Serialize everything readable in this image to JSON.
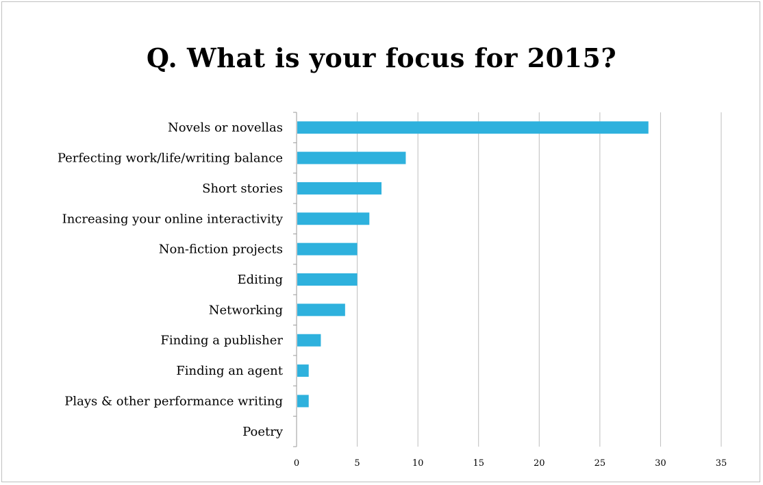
{
  "chart_data": {
    "type": "bar",
    "orientation": "horizontal",
    "title": "Q. What is your focus for 2015?",
    "categories": [
      "Novels or novellas",
      "Perfecting work/life/writing balance",
      "Short stories",
      "Increasing your online interactivity",
      "Non-fiction projects",
      "Editing",
      "Networking",
      "Finding a publisher",
      "Finding an agent",
      "Plays & other performance writing",
      "Poetry"
    ],
    "values": [
      29,
      9,
      7,
      6,
      5,
      5,
      4,
      2,
      1,
      1,
      0
    ],
    "xlim": [
      0,
      35
    ],
    "xticks": [
      "0",
      "5",
      "10",
      "15",
      "20",
      "25",
      "30",
      "35"
    ],
    "grid": true,
    "legend": "none",
    "colors": {
      "bar": "#2eb1dd",
      "grid": "#bdbdbd",
      "axis": "#9a9a9a"
    }
  }
}
